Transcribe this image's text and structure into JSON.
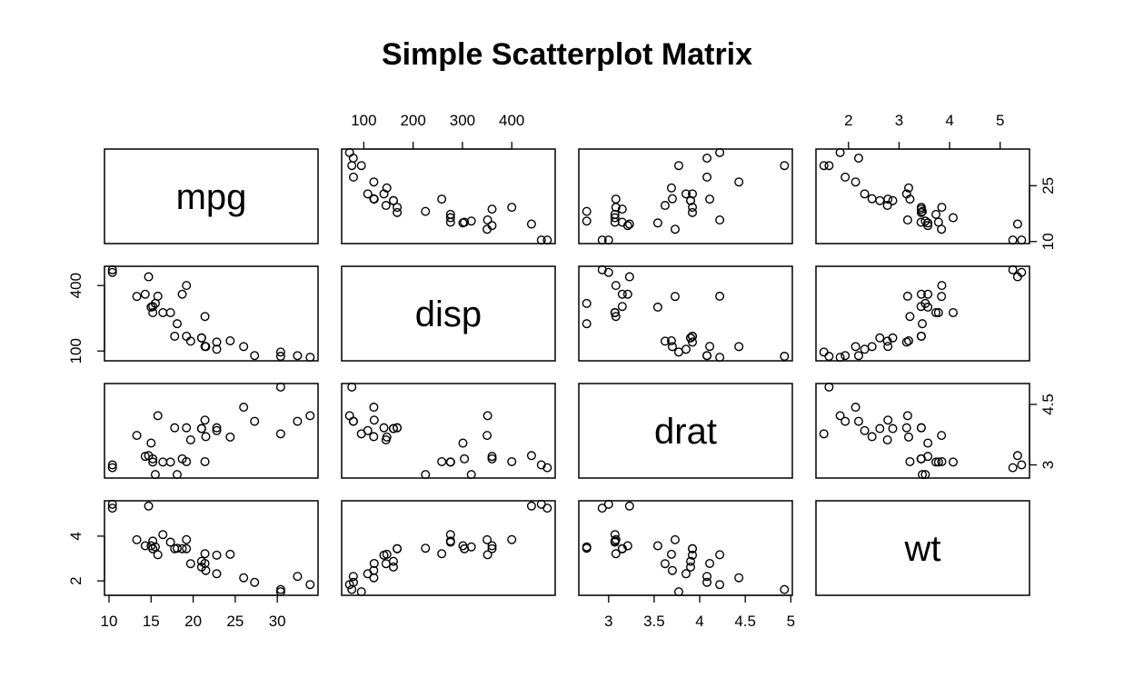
{
  "chart_data": {
    "type": "scatter",
    "subtype": "scatterplot-matrix",
    "title": "Simple Scatterplot Matrix",
    "variables": [
      {
        "name": "mpg",
        "range": [
          10.4,
          33.9
        ],
        "ticks": [
          10,
          15,
          20,
          25,
          30
        ],
        "alt_ticks": [
          10,
          25
        ]
      },
      {
        "name": "disp",
        "range": [
          71.1,
          472
        ],
        "ticks": [
          100,
          200,
          300,
          400
        ],
        "alt_ticks": [
          100,
          400
        ]
      },
      {
        "name": "drat",
        "range": [
          2.76,
          4.93
        ],
        "ticks": [
          3.0,
          3.5,
          4.0,
          4.5,
          5.0
        ],
        "alt_ticks": [
          3.0,
          4.5
        ]
      },
      {
        "name": "wt",
        "range": [
          1.513,
          5.424
        ],
        "ticks": [
          2,
          3,
          4,
          5
        ],
        "alt_ticks": [
          2,
          4
        ]
      }
    ],
    "observations": [
      [
        21.0,
        160.0,
        3.9,
        2.62
      ],
      [
        21.0,
        160.0,
        3.9,
        2.875
      ],
      [
        22.8,
        108.0,
        3.85,
        2.32
      ],
      [
        21.4,
        258.0,
        3.08,
        3.215
      ],
      [
        18.7,
        360.0,
        3.15,
        3.44
      ],
      [
        18.1,
        225.0,
        2.76,
        3.46
      ],
      [
        14.3,
        360.0,
        3.21,
        3.57
      ],
      [
        24.4,
        146.7,
        3.69,
        3.19
      ],
      [
        22.8,
        140.8,
        3.92,
        3.15
      ],
      [
        19.2,
        167.6,
        3.92,
        3.44
      ],
      [
        17.8,
        167.6,
        3.92,
        3.44
      ],
      [
        16.4,
        275.8,
        3.07,
        4.07
      ],
      [
        17.3,
        275.8,
        3.07,
        3.73
      ],
      [
        15.2,
        275.8,
        3.07,
        3.78
      ],
      [
        10.4,
        472.0,
        2.93,
        5.25
      ],
      [
        10.4,
        460.0,
        3.0,
        5.424
      ],
      [
        14.7,
        440.0,
        3.23,
        5.345
      ],
      [
        32.4,
        78.7,
        4.08,
        2.2
      ],
      [
        30.4,
        75.7,
        4.93,
        1.615
      ],
      [
        33.9,
        71.1,
        4.22,
        1.835
      ],
      [
        21.5,
        120.1,
        3.7,
        2.465
      ],
      [
        15.5,
        318.0,
        2.76,
        3.52
      ],
      [
        15.2,
        304.0,
        3.15,
        3.435
      ],
      [
        13.3,
        350.0,
        3.73,
        3.84
      ],
      [
        19.2,
        400.0,
        3.08,
        3.845
      ],
      [
        27.3,
        79.0,
        4.08,
        1.935
      ],
      [
        26.0,
        120.3,
        4.43,
        2.14
      ],
      [
        30.4,
        95.1,
        3.77,
        1.513
      ],
      [
        15.8,
        351.0,
        4.22,
        3.17
      ],
      [
        19.7,
        145.0,
        3.62,
        2.77
      ],
      [
        15.0,
        301.0,
        3.54,
        3.57
      ],
      [
        21.4,
        121.0,
        4.11,
        2.78
      ]
    ],
    "grid": false,
    "legend": "none"
  }
}
